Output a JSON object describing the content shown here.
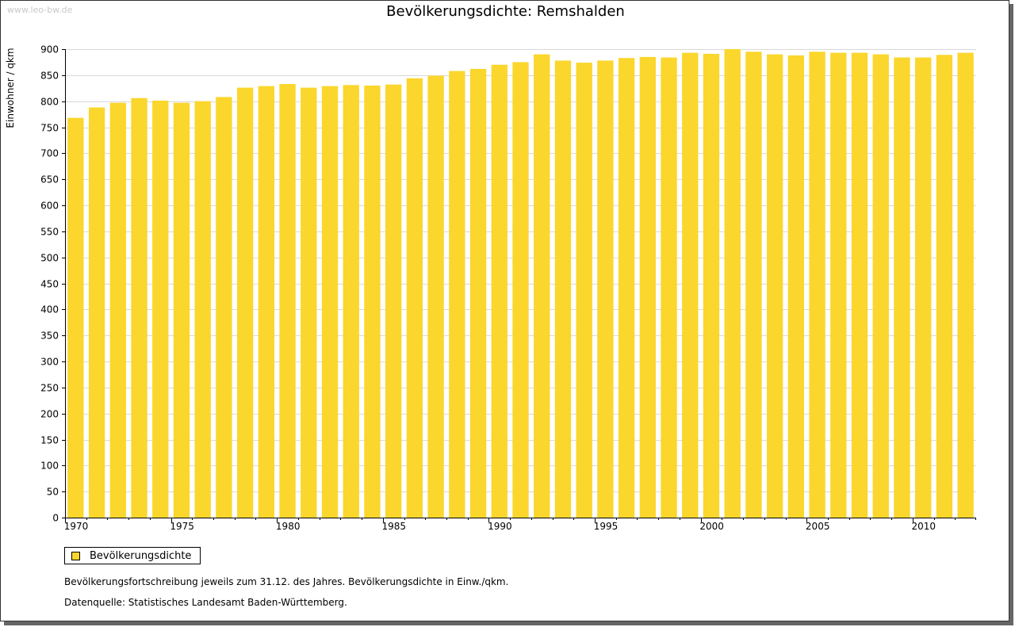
{
  "watermark": "www.leo-bw.de",
  "chart_data": {
    "type": "bar",
    "title": "Bevölkerungsdichte: Remshalden",
    "xlabel": "",
    "ylabel": "Einwohner / qkm",
    "ylim": [
      0,
      900
    ],
    "ytick_step": 50,
    "xtick_labels": [
      "1970",
      "1975",
      "1980",
      "1985",
      "1990",
      "1995",
      "2000",
      "2005",
      "2010"
    ],
    "grid": true,
    "bar_color": "#fbd62c",
    "series": [
      {
        "name": "Bevölkerungsdichte",
        "categories": [
          1970,
          1971,
          1972,
          1973,
          1974,
          1975,
          1976,
          1977,
          1978,
          1979,
          1980,
          1981,
          1982,
          1983,
          1984,
          1985,
          1986,
          1987,
          1988,
          1989,
          1990,
          1991,
          1992,
          1993,
          1994,
          1995,
          1996,
          1997,
          1998,
          1999,
          2000,
          2001,
          2002,
          2003,
          2004,
          2005,
          2006,
          2007,
          2008,
          2009,
          2010,
          2011,
          2012
        ],
        "values": [
          768,
          788,
          797,
          806,
          801,
          797,
          800,
          808,
          826,
          829,
          833,
          826,
          829,
          831,
          830,
          832,
          844,
          849,
          858,
          862,
          870,
          875,
          890,
          878,
          874,
          878,
          883,
          885,
          884,
          893,
          891,
          900,
          895,
          890,
          888,
          895,
          893,
          893,
          890,
          884,
          884,
          889,
          893
        ]
      }
    ]
  },
  "legend": {
    "label": "Bevölkerungsdichte"
  },
  "notes": {
    "line1": "Bevölkerungsfortschreibung jeweils zum 31.12. des Jahres. Bevölkerungsdichte in Einw./qkm.",
    "line2": "Datenquelle: Statistisches Landesamt Baden-Württemberg."
  }
}
